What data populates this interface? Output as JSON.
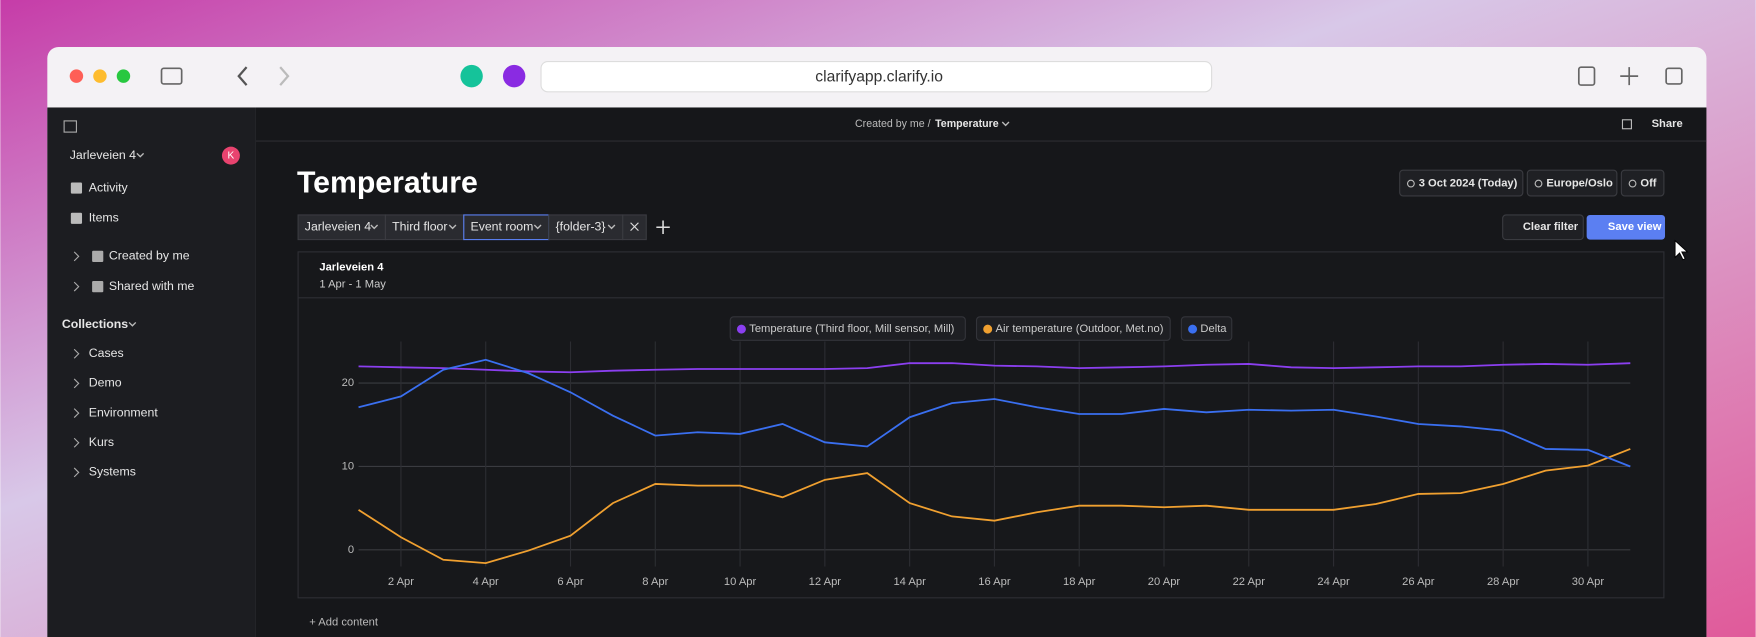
{
  "browser": {
    "url": "clarifyapp.clarify.io"
  },
  "sidebar": {
    "workspace": "Jarleveien 4",
    "avatar": "K",
    "nav": [
      "Activity",
      "Items"
    ],
    "folders": [
      "Created by me",
      "Shared with me"
    ],
    "collections_title": "Collections",
    "collections": [
      "Cases",
      "Demo",
      "Environment",
      "Kurs",
      "Systems"
    ]
  },
  "topbar": {
    "breadcrumb_prefix": "Created by me /",
    "breadcrumb_current": "Temperature",
    "share": "Share"
  },
  "page": {
    "title": "Temperature",
    "date": "3 Oct 2024 (Today)",
    "timezone": "Europe/Oslo",
    "refresh": "Off",
    "filters": [
      "Jarleveien 4",
      "Third floor",
      "Event room",
      "{folder-3}"
    ],
    "clear_filter": "Clear filter",
    "save_view": "Save view",
    "add_content": "+ Add content"
  },
  "chart_data": {
    "type": "line",
    "title": "Jarleveien 4",
    "subtitle": "1 Apr - 1 May",
    "categories": [
      null,
      "2 Apr",
      null,
      "4 Apr",
      null,
      "6 Apr",
      null,
      "8 Apr",
      null,
      "10 Apr",
      null,
      "12 Apr",
      null,
      "14 Apr",
      null,
      "16 Apr",
      null,
      "18 Apr",
      null,
      "20 Apr",
      null,
      "22 Apr",
      null,
      "24 Apr",
      null,
      "26 Apr",
      null,
      "28 Apr",
      null,
      "30 Apr",
      null
    ],
    "series": [
      {
        "name": "Temperature (Third floor, Mill sensor, Mill)",
        "color": "#8b3ff0",
        "values": [
          22.0,
          21.9,
          21.8,
          21.6,
          21.4,
          21.3,
          21.5,
          21.6,
          21.7,
          21.7,
          21.7,
          21.7,
          21.8,
          22.4,
          22.4,
          22.1,
          22.0,
          21.8,
          21.9,
          22.0,
          22.2,
          22.3,
          21.9,
          21.8,
          21.9,
          22.0,
          22.0,
          22.2,
          22.3,
          22.2,
          22.4
        ]
      },
      {
        "name": "Air temperature (Outdoor, Met.no)",
        "color": "#f0a030",
        "values": [
          4.8,
          1.5,
          -1.2,
          -1.6,
          -0.1,
          1.7,
          5.6,
          7.9,
          7.7,
          7.7,
          6.3,
          8.4,
          9.2,
          5.6,
          4.0,
          3.5,
          4.5,
          5.3,
          5.3,
          5.1,
          5.3,
          4.8,
          4.8,
          4.8,
          5.5,
          6.7,
          6.8,
          7.9,
          9.5,
          10.1,
          12.1
        ]
      },
      {
        "name": "Delta",
        "color": "#3a6ff0",
        "values": [
          17.1,
          18.4,
          21.6,
          22.8,
          21.2,
          18.9,
          16.1,
          13.7,
          14.1,
          13.9,
          15.1,
          12.9,
          12.4,
          15.9,
          17.6,
          18.1,
          17.1,
          16.3,
          16.3,
          16.9,
          16.5,
          16.8,
          16.7,
          16.8,
          16.0,
          15.1,
          14.8,
          14.3,
          12.1,
          12.0,
          10.0
        ]
      }
    ],
    "ylim": [
      -2,
      25
    ],
    "yticks": [
      0,
      10,
      20
    ],
    "grid": true
  }
}
